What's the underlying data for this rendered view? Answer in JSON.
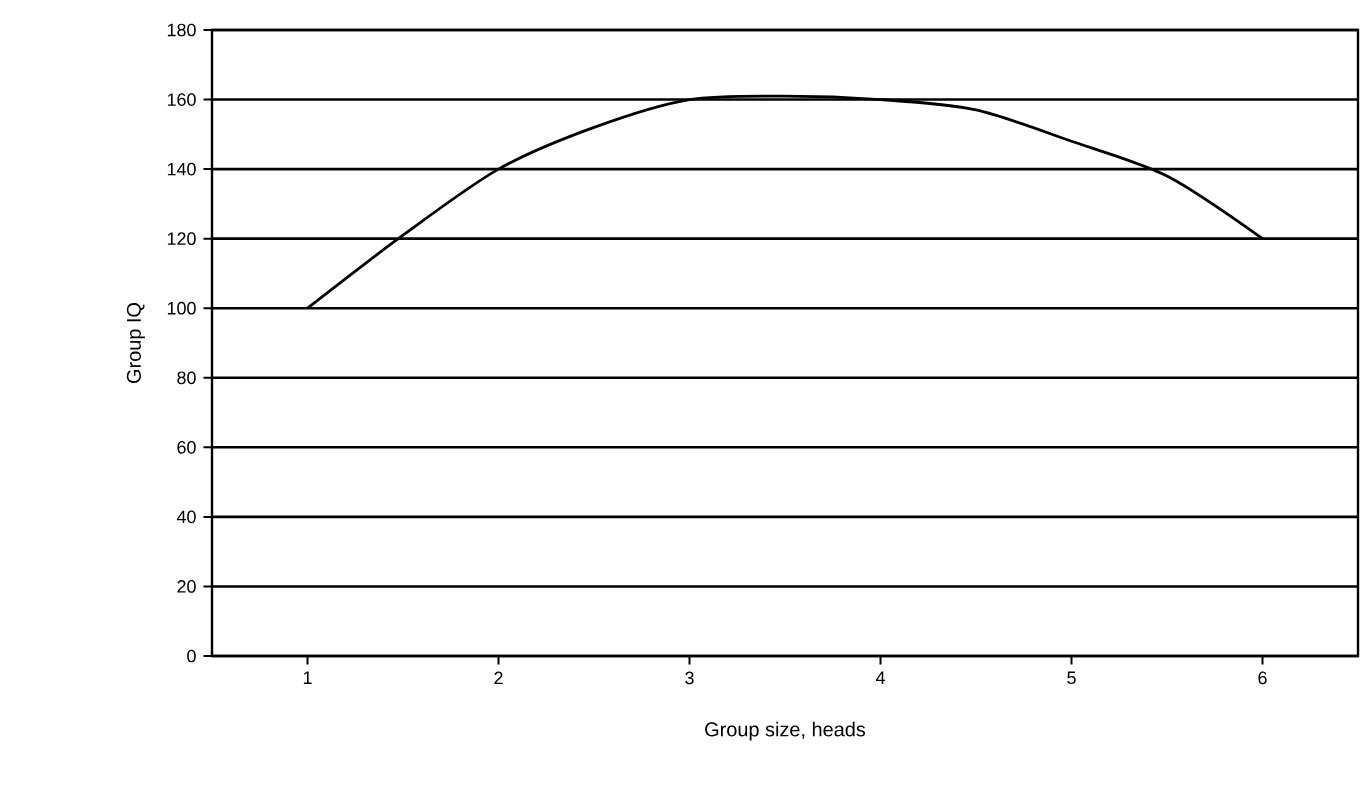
{
  "chart_data": {
    "type": "line",
    "xlabel": "Group size, heads",
    "ylabel": "Group IQ",
    "x": [
      1,
      1.5,
      2,
      2.5,
      3,
      3.5,
      4,
      4.5,
      5,
      5.5,
      6
    ],
    "series": [
      {
        "color": "#000000",
        "values": [
          100,
          121,
          140,
          152,
          160,
          161,
          160,
          157,
          148,
          138,
          120
        ]
      }
    ],
    "xlim": [
      0.5,
      6.5
    ],
    "ylim": [
      0,
      180
    ],
    "xticks": [
      1,
      2,
      3,
      4,
      5,
      6
    ],
    "yticks": [
      0,
      20,
      40,
      60,
      80,
      100,
      120,
      140,
      160,
      180
    ],
    "grid": "y",
    "marker": "none",
    "line_style": "solid"
  }
}
